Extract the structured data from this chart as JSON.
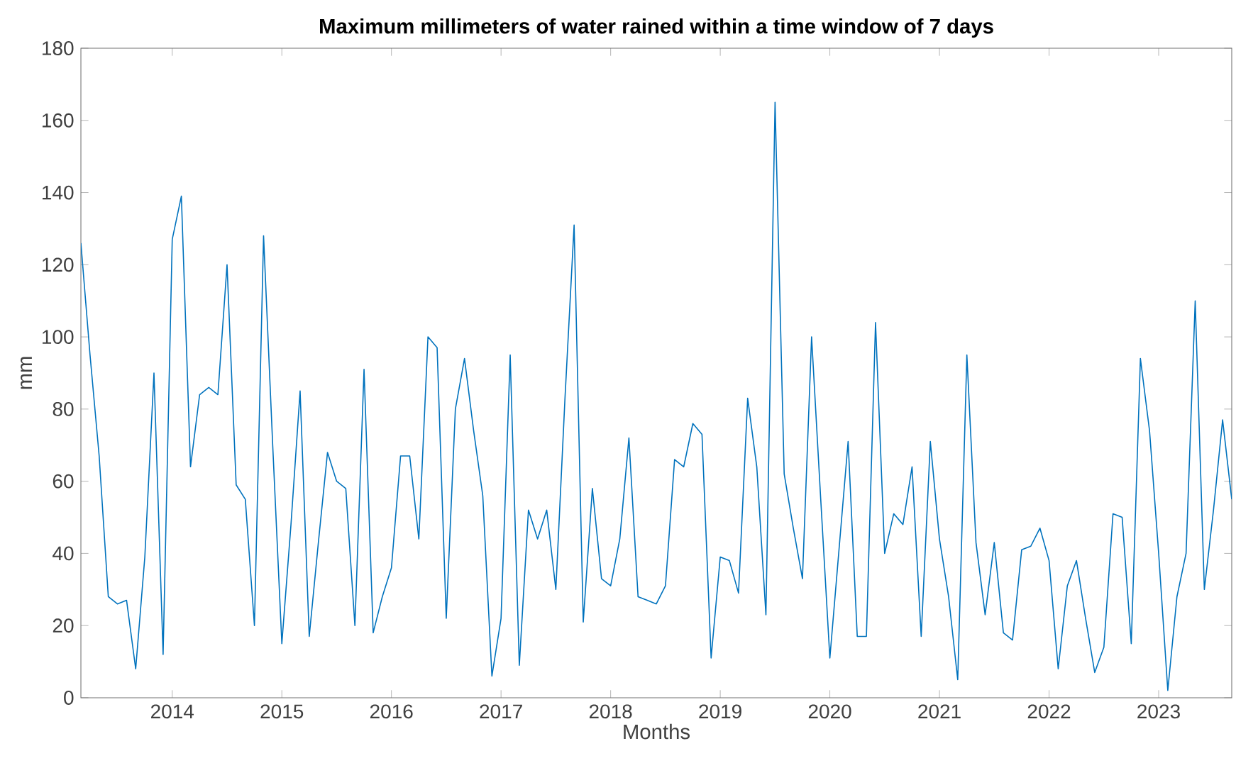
{
  "chart_data": {
    "type": "line",
    "title": "Maximum millimeters of water rained within a time window of 7 days",
    "xlabel": "Months",
    "ylabel": "mm",
    "x": [
      "2013-03",
      "2013-04",
      "2013-05",
      "2013-06",
      "2013-07",
      "2013-08",
      "2013-09",
      "2013-10",
      "2013-11",
      "2013-12",
      "2014-01",
      "2014-02",
      "2014-03",
      "2014-04",
      "2014-05",
      "2014-06",
      "2014-07",
      "2014-08",
      "2014-09",
      "2014-10",
      "2014-11",
      "2014-12",
      "2015-01",
      "2015-02",
      "2015-03",
      "2015-04",
      "2015-05",
      "2015-06",
      "2015-07",
      "2015-08",
      "2015-09",
      "2015-10",
      "2015-11",
      "2015-12",
      "2016-01",
      "2016-02",
      "2016-03",
      "2016-04",
      "2016-05",
      "2016-06",
      "2016-07",
      "2016-08",
      "2016-09",
      "2016-10",
      "2016-11",
      "2016-12",
      "2017-01",
      "2017-02",
      "2017-03",
      "2017-04",
      "2017-05",
      "2017-06",
      "2017-07",
      "2017-08",
      "2017-09",
      "2017-10",
      "2017-11",
      "2017-12",
      "2018-01",
      "2018-02",
      "2018-03",
      "2018-04",
      "2018-05",
      "2018-06",
      "2018-07",
      "2018-08",
      "2018-09",
      "2018-10",
      "2018-11",
      "2018-12",
      "2019-01",
      "2019-02",
      "2019-03",
      "2019-04",
      "2019-05",
      "2019-06",
      "2019-07",
      "2019-08",
      "2019-09",
      "2019-10",
      "2019-11",
      "2019-12",
      "2020-01",
      "2020-02",
      "2020-03",
      "2020-04",
      "2020-05",
      "2020-06",
      "2020-07",
      "2020-08",
      "2020-09",
      "2020-10",
      "2020-11",
      "2020-12",
      "2021-01",
      "2021-02",
      "2021-03",
      "2021-04",
      "2021-05",
      "2021-06",
      "2021-07",
      "2021-08",
      "2021-09",
      "2021-10",
      "2021-11",
      "2021-12",
      "2022-01",
      "2022-02",
      "2022-03",
      "2022-04",
      "2022-05",
      "2022-06",
      "2022-07",
      "2022-08",
      "2022-09",
      "2022-10",
      "2022-11",
      "2022-12",
      "2023-01",
      "2023-02",
      "2023-03",
      "2023-04",
      "2023-05",
      "2023-06",
      "2023-07",
      "2023-08",
      "2023-09"
    ],
    "values": [
      126,
      95,
      67,
      28,
      26,
      27,
      8,
      39,
      90,
      12,
      127,
      139,
      64,
      84,
      86,
      84,
      120,
      59,
      55,
      20,
      128,
      70,
      15,
      48,
      85,
      17,
      43,
      68,
      60,
      58,
      20,
      91,
      18,
      28,
      36,
      67,
      67,
      44,
      100,
      97,
      22,
      80,
      94,
      74,
      56,
      6,
      22,
      95,
      9,
      52,
      44,
      52,
      30,
      83,
      131,
      21,
      58,
      33,
      31,
      44,
      72,
      28,
      27,
      26,
      31,
      66,
      64,
      76,
      73,
      11,
      39,
      38,
      29,
      83,
      64,
      23,
      165,
      62,
      47,
      33,
      100,
      55,
      11,
      41,
      71,
      17,
      17,
      104,
      40,
      51,
      48,
      64,
      17,
      71,
      44,
      28,
      5,
      95,
      43,
      23,
      43,
      18,
      16,
      41,
      42,
      47,
      38,
      8,
      31,
      38,
      22,
      7,
      14,
      51,
      50,
      15,
      94,
      74,
      40,
      2,
      28,
      40,
      110,
      30,
      52,
      77,
      55
    ],
    "color": "#0072bd",
    "xlim": [
      "2013-03",
      "2023-09"
    ],
    "ylim": [
      0,
      180
    ],
    "xticks": [
      "2014",
      "2015",
      "2016",
      "2017",
      "2018",
      "2019",
      "2020",
      "2021",
      "2022",
      "2023"
    ],
    "yticks": [
      0,
      20,
      40,
      60,
      80,
      100,
      120,
      140,
      160,
      180
    ]
  }
}
